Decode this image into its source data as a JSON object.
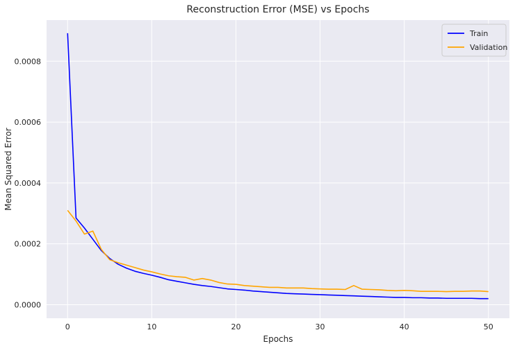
{
  "chart_data": {
    "type": "line",
    "title": "Reconstruction Error (MSE) vs Epochs",
    "xlabel": "Epochs",
    "ylabel": "Mean Squared Error",
    "xlim": [
      -2.5,
      52.5
    ],
    "ylim": [
      -4.45e-05,
      0.000935
    ],
    "xticks": [
      0,
      10,
      20,
      30,
      40,
      50
    ],
    "yticks": [
      0.0,
      0.0002,
      0.0004,
      0.0006,
      0.0008
    ],
    "ytick_labels": [
      "0.0000",
      "0.0002",
      "0.0004",
      "0.0006",
      "0.0008"
    ],
    "grid": true,
    "legend_position": "top-right",
    "x": [
      0,
      1,
      2,
      3,
      4,
      5,
      6,
      7,
      8,
      9,
      10,
      11,
      12,
      13,
      14,
      15,
      16,
      17,
      18,
      19,
      20,
      21,
      22,
      23,
      24,
      25,
      26,
      27,
      28,
      29,
      30,
      31,
      32,
      33,
      34,
      35,
      36,
      37,
      38,
      39,
      40,
      41,
      42,
      43,
      44,
      45,
      46,
      47,
      48,
      49,
      50
    ],
    "series": [
      {
        "name": "Train",
        "color": "#0000ff",
        "values": [
          0.000892,
          0.000285,
          0.000252,
          0.000215,
          0.000178,
          0.000152,
          0.000133,
          0.00012,
          0.00011,
          0.000103,
          9.7e-05,
          9e-05,
          8.2e-05,
          7.7e-05,
          7.2e-05,
          6.7e-05,
          6.3e-05,
          6e-05,
          5.6e-05,
          5.2e-05,
          5e-05,
          4.8e-05,
          4.5e-05,
          4.3e-05,
          4.1e-05,
          3.9e-05,
          3.7e-05,
          3.6e-05,
          3.5e-05,
          3.4e-05,
          3.3e-05,
          3.2e-05,
          3.1e-05,
          3e-05,
          2.9e-05,
          2.8e-05,
          2.7e-05,
          2.6e-05,
          2.5e-05,
          2.4e-05,
          2.4e-05,
          2.3e-05,
          2.3e-05,
          2.2e-05,
          2.2e-05,
          2.1e-05,
          2.1e-05,
          2.1e-05,
          2.1e-05,
          2e-05,
          2e-05
        ]
      },
      {
        "name": "Validation",
        "color": "#ffa500",
        "values": [
          0.00031,
          0.000275,
          0.000232,
          0.000242,
          0.000182,
          0.000148,
          0.000138,
          0.00013,
          0.000122,
          0.000114,
          0.000108,
          0.000101,
          9.5e-05,
          9.2e-05,
          9e-05,
          8.1e-05,
          8.6e-05,
          8.1e-05,
          7.3e-05,
          6.8e-05,
          6.7e-05,
          6.3e-05,
          6.1e-05,
          5.9e-05,
          5.7e-05,
          5.7e-05,
          5.5e-05,
          5.5e-05,
          5.5e-05,
          5.3e-05,
          5.2e-05,
          5.1e-05,
          5.1e-05,
          5e-05,
          6.3e-05,
          5.1e-05,
          5e-05,
          4.9e-05,
          4.7e-05,
          4.6e-05,
          4.7e-05,
          4.6e-05,
          4.4e-05,
          4.4e-05,
          4.4e-05,
          4.3e-05,
          4.4e-05,
          4.4e-05,
          4.5e-05,
          4.5e-05,
          4.3e-05
        ]
      }
    ]
  }
}
